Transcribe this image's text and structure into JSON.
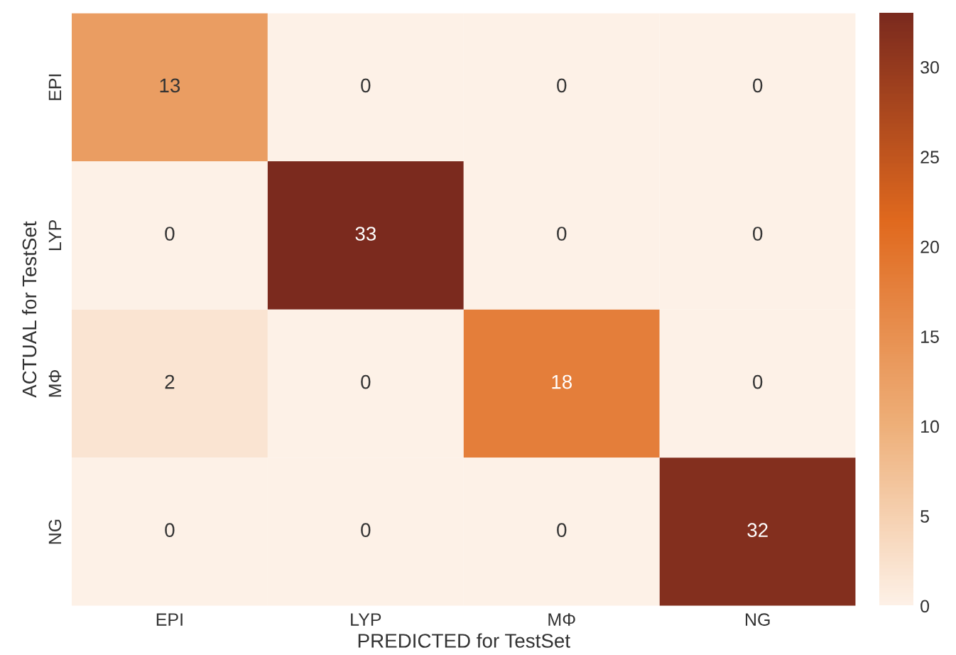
{
  "chart_data": {
    "type": "heatmap",
    "xlabel": "PREDICTED for TestSet",
    "ylabel": "ACTUAL for TestSet",
    "categories": [
      "EPI",
      "LYP",
      "MΦ",
      "NG"
    ],
    "y_categories": [
      "EPI",
      "LYP",
      "MΦ",
      "NG"
    ],
    "cells": [
      [
        13,
        0,
        0,
        0
      ],
      [
        0,
        33,
        0,
        0
      ],
      [
        2,
        0,
        18,
        0
      ],
      [
        0,
        0,
        0,
        32
      ]
    ],
    "clim": [
      0,
      33
    ],
    "cticks": [
      0,
      5,
      10,
      15,
      20,
      25,
      30
    ],
    "data_labels": true
  }
}
